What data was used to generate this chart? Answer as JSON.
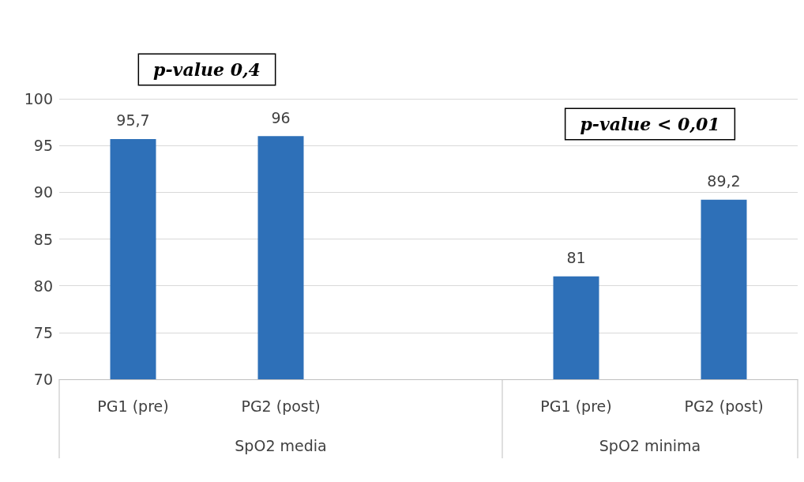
{
  "chart_data": {
    "type": "bar",
    "categories": [
      "PG1 (pre)",
      "PG2 (post)",
      null,
      "PG1 (pre)",
      "PG2 (post)"
    ],
    "values": [
      95.7,
      96,
      null,
      81,
      89.2
    ],
    "value_labels": [
      "95,7",
      "96",
      null,
      "81",
      "89,2"
    ],
    "color": "#2e70b8",
    "ylim": [
      70,
      100
    ],
    "yticks": [
      70,
      75,
      80,
      85,
      90,
      95,
      100
    ],
    "grid": "y",
    "annotations": [
      "p-value 0,4",
      "p-value < 0,01",
      "SpO2 media",
      "SpO2 minima"
    ]
  }
}
